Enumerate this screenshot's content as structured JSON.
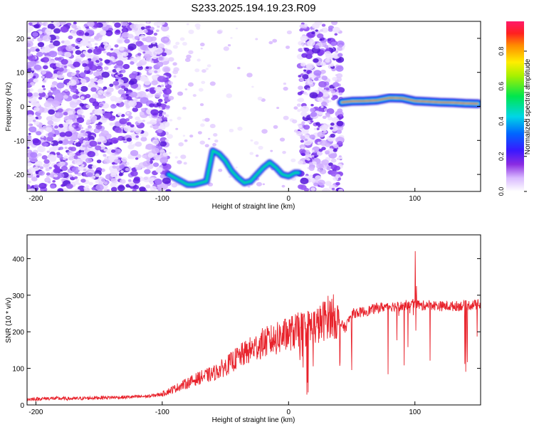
{
  "title": "S233.2025.194.19.23.R09",
  "colors": {
    "signal": "#e8222b",
    "scatter": "#7a2cf0",
    "band_core": "#ff2a18",
    "band_mid": "#00e060",
    "band_edge": "#0033ff"
  },
  "chart_data": [
    {
      "type": "heatmap",
      "title": "S233.2025.194.19.23.R09",
      "xlabel": "Height of straight line (km)",
      "ylabel": "Frequency (Hz)",
      "xlim": [
        -207,
        152
      ],
      "ylim": [
        -25,
        25
      ],
      "x_ticks": [
        -200,
        -100,
        0,
        100
      ],
      "y_ticks": [
        -20,
        -10,
        0,
        10,
        20
      ],
      "colorbar": {
        "label": "Normalized spectral amplitude",
        "range": [
          0,
          0.97
        ],
        "ticks": [
          "0.0",
          "0.2",
          "0.4",
          "0.6",
          "0.8"
        ]
      },
      "features": {
        "noise_regions_x": [
          [
            -207,
            -95
          ],
          [
            8,
            42
          ]
        ],
        "sparse_region_x": [
          -95,
          8
        ],
        "descending_track": {
          "x": [
            -95,
            -90,
            -85,
            -80,
            -75,
            -70,
            -65,
            -60,
            -55,
            -50,
            -45,
            -40,
            -35,
            -30,
            -25,
            -20,
            -15,
            -10,
            -5,
            0,
            5,
            8
          ],
          "y": [
            -20,
            -21,
            -22,
            -23,
            -23,
            -22.5,
            -22,
            -13,
            -14,
            -16,
            -19,
            -21,
            -22.5,
            -22,
            -20,
            -18,
            -16.5,
            -18,
            -20,
            -20.5,
            -19.5,
            -19.5
          ]
        },
        "stable_band": {
          "x": [
            42,
            50,
            60,
            70,
            80,
            90,
            100,
            110,
            120,
            130,
            140,
            150
          ],
          "y": [
            1.2,
            1.5,
            1.6,
            1.8,
            2.5,
            2.4,
            1.6,
            1.4,
            1.2,
            1.1,
            0.9,
            0.8
          ]
        }
      }
    },
    {
      "type": "line",
      "xlabel": "Height of straight line (km)",
      "ylabel": "SNR (10 * v/v)",
      "xlim": [
        -207,
        152
      ],
      "ylim": [
        0,
        465
      ],
      "x_ticks": [
        -200,
        -100,
        0,
        100
      ],
      "y_ticks": [
        0,
        100,
        200,
        300,
        400
      ],
      "series": [
        {
          "color": "#e8222b",
          "x": [
            -207,
            -190,
            -170,
            -150,
            -130,
            -110,
            -100,
            -90,
            -80,
            -70,
            -60,
            -50,
            -40,
            -30,
            -20,
            -10,
            0,
            10,
            20,
            25,
            30,
            35,
            40,
            45,
            50,
            60,
            70,
            80,
            90,
            95,
            100,
            105,
            110,
            120,
            130,
            140,
            150
          ],
          "values": [
            15,
            18,
            17,
            20,
            21,
            24,
            30,
            45,
            60,
            75,
            85,
            105,
            130,
            150,
            170,
            180,
            195,
            205,
            215,
            220,
            240,
            245,
            225,
            210,
            250,
            255,
            265,
            270,
            270,
            275,
            280,
            270,
            275,
            270,
            270,
            272,
            275
          ]
        }
      ]
    }
  ]
}
